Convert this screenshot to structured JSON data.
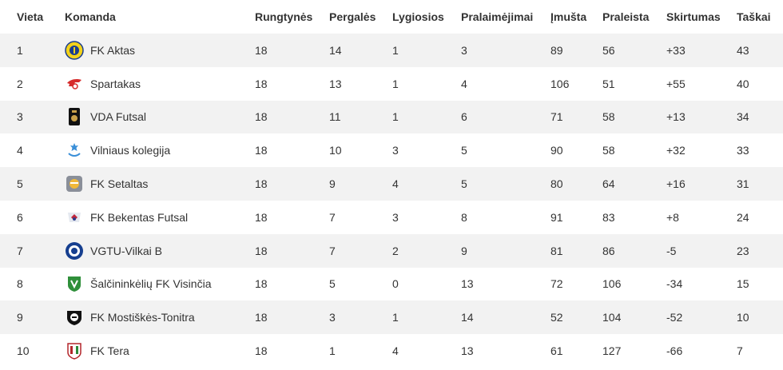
{
  "columns": [
    "Vieta",
    "Komanda",
    "Rungtynės",
    "Pergalės",
    "Lygiosios",
    "Pralaimėjimai",
    "Įmušta",
    "Praleista",
    "Skirtumas",
    "Taškai"
  ],
  "rows": [
    {
      "place": "1",
      "team": "FK Aktas",
      "logo": "aktas-crest-icon",
      "played": "18",
      "wins": "14",
      "draws": "1",
      "losses": "3",
      "scored": "89",
      "conceded": "56",
      "diff": "+33",
      "points": "43"
    },
    {
      "place": "2",
      "team": "Spartakas",
      "logo": "spartakas-crest-icon",
      "played": "18",
      "wins": "13",
      "draws": "1",
      "losses": "4",
      "scored": "106",
      "conceded": "51",
      "diff": "+55",
      "points": "40"
    },
    {
      "place": "3",
      "team": "VDA Futsal",
      "logo": "vda-crest-icon",
      "played": "18",
      "wins": "11",
      "draws": "1",
      "losses": "6",
      "scored": "71",
      "conceded": "58",
      "diff": "+13",
      "points": "34"
    },
    {
      "place": "4",
      "team": "Vilniaus kolegija",
      "logo": "kolegija-crest-icon",
      "played": "18",
      "wins": "10",
      "draws": "3",
      "losses": "5",
      "scored": "90",
      "conceded": "58",
      "diff": "+32",
      "points": "33"
    },
    {
      "place": "5",
      "team": "FK Setaltas",
      "logo": "setaltas-crest-icon",
      "played": "18",
      "wins": "9",
      "draws": "4",
      "losses": "5",
      "scored": "80",
      "conceded": "64",
      "diff": "+16",
      "points": "31"
    },
    {
      "place": "6",
      "team": "FK Bekentas Futsal",
      "logo": "bekentas-crest-icon",
      "played": "18",
      "wins": "7",
      "draws": "3",
      "losses": "8",
      "scored": "91",
      "conceded": "83",
      "diff": "+8",
      "points": "24"
    },
    {
      "place": "7",
      "team": "VGTU-Vilkai B",
      "logo": "vgtu-crest-icon",
      "played": "18",
      "wins": "7",
      "draws": "2",
      "losses": "9",
      "scored": "81",
      "conceded": "86",
      "diff": "-5",
      "points": "23"
    },
    {
      "place": "8",
      "team": "Šalčininkėlių FK Visinčia",
      "logo": "visincia-crest-icon",
      "played": "18",
      "wins": "5",
      "draws": "0",
      "losses": "13",
      "scored": "72",
      "conceded": "106",
      "diff": "-34",
      "points": "15"
    },
    {
      "place": "9",
      "team": "FK Mostiškės-Tonitra",
      "logo": "mostiskes-crest-icon",
      "played": "18",
      "wins": "3",
      "draws": "1",
      "losses": "14",
      "scored": "52",
      "conceded": "104",
      "diff": "-52",
      "points": "10"
    },
    {
      "place": "10",
      "team": "FK Tera",
      "logo": "tera-crest-icon",
      "played": "18",
      "wins": "1",
      "draws": "4",
      "losses": "13",
      "scored": "61",
      "conceded": "127",
      "diff": "-66",
      "points": "7"
    }
  ]
}
